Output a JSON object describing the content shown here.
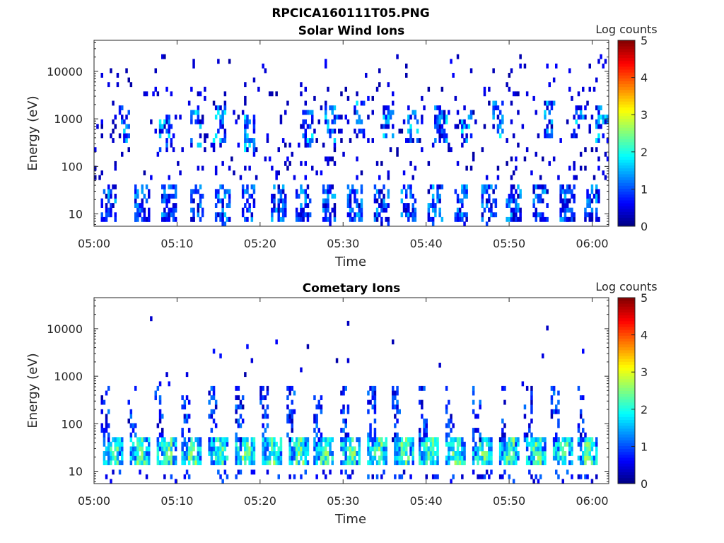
{
  "figure_title": "RPCICA160111T05.PNG",
  "chart_data": [
    {
      "type": "heatmap",
      "title": "Solar Wind Ions",
      "xlabel": "Time",
      "ylabel": "Energy (eV)",
      "x_ticks": [
        "05:00",
        "05:10",
        "05:20",
        "05:30",
        "05:40",
        "05:50",
        "06:00"
      ],
      "x_range_minutes": [
        0,
        62
      ],
      "y_ticks": [
        "10",
        "100",
        "1000",
        "10000"
      ],
      "y_scale": "log",
      "y_range": [
        5.5,
        45000
      ],
      "colorbar": {
        "title": "Log counts",
        "range": [
          0,
          5
        ],
        "ticks": [
          "0",
          "1",
          "2",
          "3",
          "4",
          "5"
        ],
        "colormap": "jet"
      },
      "features": {
        "low_energy_bursts_minutes": [
          1.8,
          5.7,
          9.0,
          12.4,
          15.4,
          18.6,
          22.2,
          25.3,
          28.3,
          31.5,
          34.6,
          37.8,
          41.0,
          44.2,
          47.5,
          50.6,
          53.8,
          57.0,
          60.1
        ],
        "low_energy_band_eV": [
          7,
          40
        ],
        "mid_energy_streaks": [
          {
            "t": 3.7,
            "center_eV": 800
          },
          {
            "t": 8.6,
            "center_eV": 500
          },
          {
            "t": 12.2,
            "center_eV": 650
          },
          {
            "t": 15.1,
            "center_eV": 850
          },
          {
            "t": 18.7,
            "center_eV": 600
          },
          {
            "t": 25.8,
            "center_eV": 700
          },
          {
            "t": 28.6,
            "center_eV": 900
          },
          {
            "t": 31.9,
            "center_eV": 1000
          },
          {
            "t": 35.4,
            "center_eV": 900
          },
          {
            "t": 38.4,
            "center_eV": 800
          },
          {
            "t": 41.8,
            "center_eV": 900
          },
          {
            "t": 44.9,
            "center_eV": 800
          },
          {
            "t": 48.6,
            "center_eV": 1000
          },
          {
            "t": 54.8,
            "center_eV": 1000
          },
          {
            "t": 58.4,
            "center_eV": 900
          },
          {
            "t": 61.2,
            "center_eV": 900
          }
        ],
        "scattered_density": 0.55
      }
    },
    {
      "type": "heatmap",
      "title": "Cometary Ions",
      "xlabel": "Time",
      "ylabel": "Energy (eV)",
      "x_ticks": [
        "05:00",
        "05:10",
        "05:20",
        "05:30",
        "05:40",
        "05:50",
        "06:00"
      ],
      "x_range_minutes": [
        0,
        62
      ],
      "y_ticks": [
        "10",
        "100",
        "1000",
        "10000"
      ],
      "y_scale": "log",
      "y_range": [
        5.5,
        45000
      ],
      "colorbar": {
        "title": "Log counts",
        "range": [
          0,
          5
        ],
        "ticks": [
          "0",
          "1",
          "2",
          "3",
          "4",
          "5"
        ],
        "colormap": "jet"
      },
      "features": {
        "bursts_minutes": [
          2.0,
          5.3,
          8.5,
          11.6,
          14.8,
          18.0,
          21.2,
          24.4,
          27.5,
          30.7,
          33.9,
          37.1,
          40.2,
          43.4,
          46.6,
          49.8,
          53.0,
          56.2,
          59.3
        ],
        "core_band_eV": [
          14,
          45
        ],
        "tail_top_eV": 500,
        "scattered_density": 0.12
      }
    }
  ]
}
